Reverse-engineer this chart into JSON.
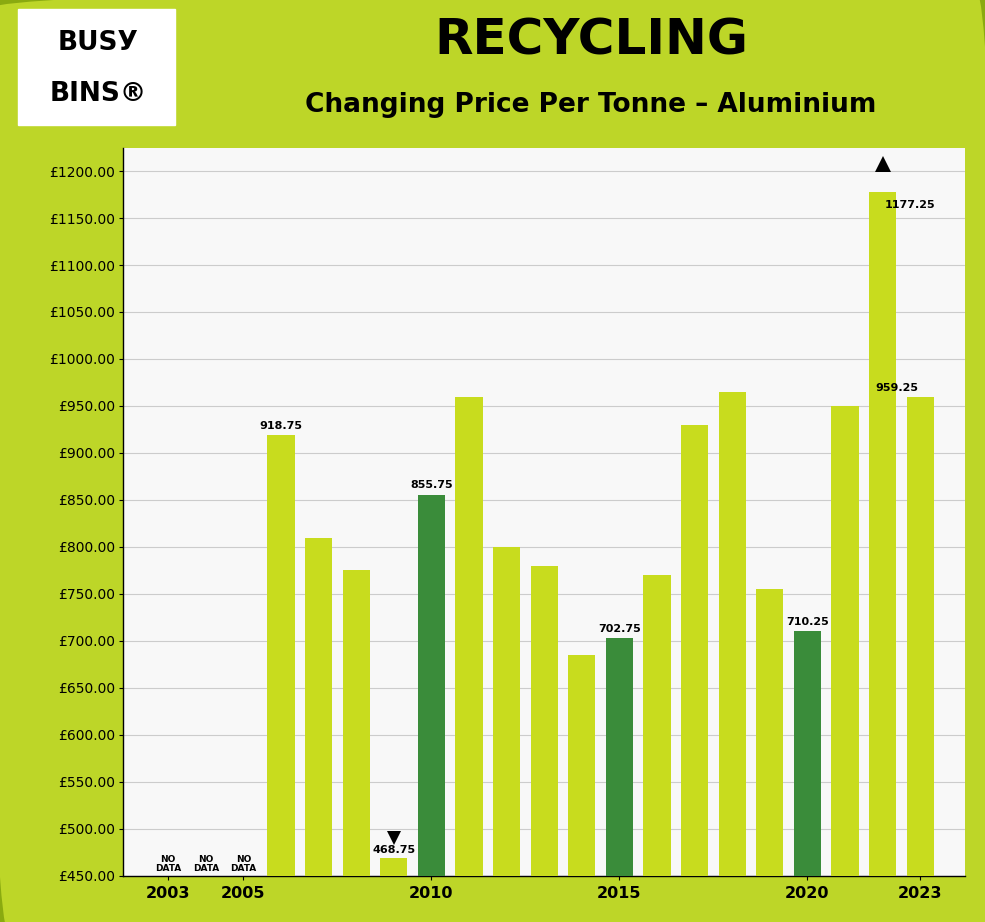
{
  "years": [
    2003,
    2004,
    2005,
    2006,
    2007,
    2008,
    2009,
    2010,
    2011,
    2012,
    2013,
    2014,
    2015,
    2016,
    2017,
    2018,
    2019,
    2020,
    2021,
    2022,
    2023
  ],
  "values": [
    null,
    null,
    null,
    918.75,
    810.0,
    775.0,
    468.75,
    855.75,
    960.0,
    800.0,
    780.0,
    685.0,
    702.75,
    770.0,
    930.0,
    965.0,
    755.0,
    710.25,
    950.0,
    1177.25,
    959.25
  ],
  "bar_colors": [
    null,
    null,
    null,
    "#c8dc1e",
    "#c8dc1e",
    "#c8dc1e",
    "#c8dc1e",
    "#3a8c3a",
    "#c8dc1e",
    "#c8dc1e",
    "#c8dc1e",
    "#c8dc1e",
    "#3a8c3a",
    "#c8dc1e",
    "#c8dc1e",
    "#c8dc1e",
    "#c8dc1e",
    "#3a8c3a",
    "#c8dc1e",
    "#c8dc1e",
    "#c8dc1e"
  ],
  "labeled": {
    "2006": 918.75,
    "2009": 468.75,
    "2010": 855.75,
    "2015": 702.75,
    "2020": 710.25,
    "2022": 1177.25,
    "2023": 959.25
  },
  "no_data_years": [
    2003,
    2004,
    2005
  ],
  "arrow_up_year": 2022,
  "arrow_down_year": 2009,
  "ylim_low": 450,
  "ylim_high": 1225,
  "yticks": [
    450,
    500,
    550,
    600,
    650,
    700,
    750,
    800,
    850,
    900,
    950,
    1000,
    1050,
    1100,
    1150,
    1200
  ],
  "xtick_years": [
    2003,
    2005,
    2010,
    2015,
    2020,
    2023
  ],
  "xlim_low": 2001.8,
  "xlim_high": 2024.2,
  "chart_bg": "#f8f8f8",
  "header_bg": "#bdd628",
  "outer_bg": "#bdd628",
  "border_color": "#8aaa10",
  "lime_green": "#c8dc1e",
  "dark_green": "#3a8c3a",
  "grid_color": "#cccccc",
  "title_main": "RECYCLING",
  "title_sub": "Changing Price Per Tonne – Aluminium",
  "bar_width": 0.72,
  "label_fontsize": 8.0,
  "tick_fontsize": 10.0,
  "xtick_fontsize": 11.5
}
